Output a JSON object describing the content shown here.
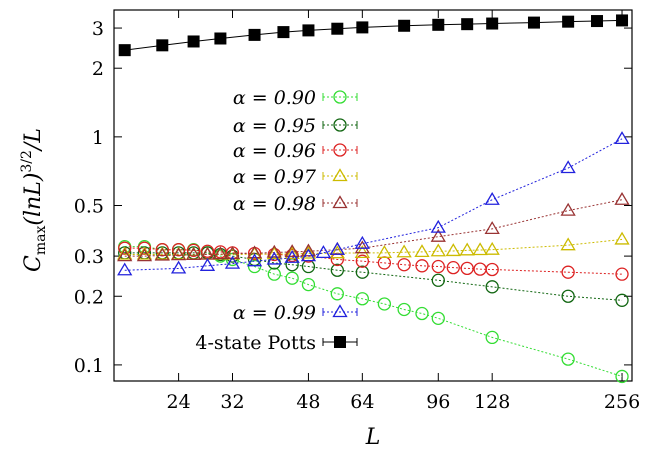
{
  "chart_data": {
    "type": "scatter",
    "xscale": "log",
    "yscale": "log",
    "xlabel": "L",
    "ylabel": "C_max(lnL)^{3/2}/L",
    "xlim": [
      17,
      270
    ],
    "ylim": [
      0.085,
      3.6
    ],
    "xticks": [
      24,
      32,
      48,
      64,
      96,
      128,
      256
    ],
    "yticks": [
      0.1,
      0.2,
      0.3,
      0.5,
      1,
      2,
      3
    ],
    "series": [
      {
        "name": "α = 0.90",
        "marker": "circle",
        "color": "#33dd33",
        "x": [
          18,
          20,
          22,
          24,
          26,
          28,
          30,
          32,
          36,
          40,
          44,
          48,
          56,
          64,
          72,
          80,
          88,
          96,
          128,
          192,
          256
        ],
        "y": [
          0.33,
          0.33,
          0.32,
          0.32,
          0.32,
          0.31,
          0.3,
          0.29,
          0.27,
          0.25,
          0.24,
          0.225,
          0.205,
          0.195,
          0.185,
          0.175,
          0.168,
          0.16,
          0.132,
          0.106,
          0.089
        ]
      },
      {
        "name": "α = 0.95",
        "marker": "circle",
        "color": "#116611",
        "x": [
          18,
          20,
          22,
          24,
          26,
          28,
          30,
          32,
          36,
          40,
          44,
          48,
          56,
          64,
          96,
          128,
          192,
          256
        ],
        "y": [
          0.31,
          0.31,
          0.31,
          0.31,
          0.31,
          0.31,
          0.305,
          0.3,
          0.29,
          0.28,
          0.275,
          0.27,
          0.26,
          0.255,
          0.235,
          0.22,
          0.2,
          0.192
        ]
      },
      {
        "name": "α = 0.96",
        "marker": "circle",
        "color": "#dd2222",
        "x": [
          18,
          20,
          22,
          24,
          26,
          28,
          30,
          32,
          36,
          40,
          44,
          48,
          56,
          64,
          72,
          80,
          88,
          96,
          104,
          112,
          120,
          128,
          192,
          256
        ],
        "y": [
          0.325,
          0.325,
          0.32,
          0.32,
          0.318,
          0.315,
          0.313,
          0.31,
          0.308,
          0.305,
          0.302,
          0.3,
          0.29,
          0.285,
          0.28,
          0.275,
          0.272,
          0.27,
          0.267,
          0.265,
          0.263,
          0.262,
          0.255,
          0.25
        ]
      },
      {
        "name": "α = 0.97",
        "marker": "triangle",
        "color": "#ccbb00",
        "x": [
          18,
          20,
          22,
          24,
          26,
          28,
          30,
          32,
          36,
          40,
          44,
          48,
          56,
          64,
          72,
          80,
          88,
          96,
          104,
          112,
          120,
          128,
          192,
          256
        ],
        "y": [
          0.305,
          0.305,
          0.305,
          0.305,
          0.305,
          0.305,
          0.305,
          0.305,
          0.306,
          0.306,
          0.307,
          0.308,
          0.309,
          0.31,
          0.31,
          0.312,
          0.313,
          0.315,
          0.316,
          0.318,
          0.319,
          0.32,
          0.335,
          0.355
        ]
      },
      {
        "name": "α = 0.98",
        "marker": "triangle",
        "color": "#993333",
        "x": [
          18,
          20,
          22,
          24,
          26,
          28,
          30,
          32,
          36,
          40,
          44,
          48,
          56,
          64,
          96,
          128,
          192,
          256
        ],
        "y": [
          0.3,
          0.3,
          0.302,
          0.303,
          0.304,
          0.305,
          0.306,
          0.307,
          0.309,
          0.311,
          0.313,
          0.315,
          0.32,
          0.325,
          0.365,
          0.395,
          0.475,
          0.53
        ]
      },
      {
        "name": "α = 0.99",
        "marker": "triangle",
        "color": "#2222dd",
        "x": [
          18,
          24,
          28,
          32,
          36,
          40,
          44,
          48,
          52,
          56,
          64,
          96,
          128,
          192,
          256
        ],
        "y": [
          0.26,
          0.265,
          0.272,
          0.278,
          0.285,
          0.29,
          0.295,
          0.3,
          0.31,
          0.32,
          0.34,
          0.4,
          0.53,
          0.73,
          0.98
        ]
      },
      {
        "name": "4-state Potts",
        "marker": "square",
        "color": "#000000",
        "x": [
          18,
          22,
          26,
          30,
          36,
          42,
          48,
          56,
          64,
          80,
          96,
          112,
          128,
          160,
          192,
          224,
          256
        ],
        "y": [
          2.4,
          2.52,
          2.62,
          2.7,
          2.8,
          2.88,
          2.93,
          2.98,
          3.02,
          3.07,
          3.1,
          3.12,
          3.14,
          3.17,
          3.2,
          3.22,
          3.24
        ]
      }
    ]
  }
}
